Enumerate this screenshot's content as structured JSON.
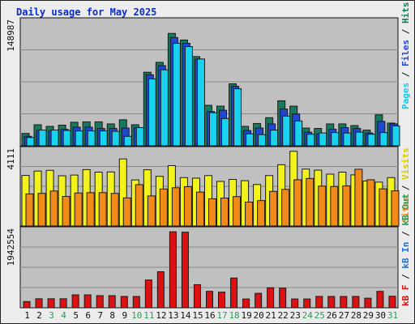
{
  "title": "Daily usage for May 2025",
  "colors": {
    "hits": "#157a5e",
    "files": "#1f47d6",
    "pages": "#18d2f0",
    "visits": "#f2f21c",
    "sites": "#f28a1a",
    "kbytes": "#dd1111",
    "panel_bg": "#c0c0c0",
    "weekend": "#2e9a5a",
    "weekday": "#111111"
  },
  "legend": {
    "top": [
      {
        "label": "Pages",
        "color": "#18c8e6"
      },
      {
        "label": " / ",
        "color": "#111111"
      },
      {
        "label": "Files",
        "color": "#1f47d6"
      },
      {
        "label": " / ",
        "color": "#111111"
      },
      {
        "label": "Hits",
        "color": "#157a5e"
      }
    ],
    "middle": [
      {
        "label": "Sites",
        "color": "#f28a1a"
      },
      {
        "label": " / ",
        "color": "#111111"
      },
      {
        "label": "Visits",
        "color": "#d8c800"
      }
    ],
    "bottom": [
      {
        "label": "kB F",
        "color": "#dd1111"
      },
      {
        "label": " / ",
        "color": "#111111"
      },
      {
        "label": "kB In",
        "color": "#1f70d6"
      },
      {
        "label": " / ",
        "color": "#111111"
      },
      {
        "label": "kB Out",
        "color": "#2e9a5a"
      }
    ]
  },
  "chart_data": {
    "type": "bar",
    "title": "Daily usage for May 2025",
    "categories": [
      "1",
      "2",
      "3",
      "4",
      "5",
      "6",
      "7",
      "8",
      "9",
      "10",
      "11",
      "12",
      "13",
      "14",
      "15",
      "16",
      "17",
      "18",
      "19",
      "20",
      "21",
      "22",
      "23",
      "24",
      "25",
      "26",
      "27",
      "28",
      "29",
      "30",
      "31"
    ],
    "weekend_days": [
      3,
      4,
      10,
      11,
      17,
      18,
      24,
      25,
      31
    ],
    "panels": [
      {
        "id": "hits-files-pages",
        "ymax_label": "148987",
        "ymax": 148987,
        "series": [
          {
            "name": "Hits",
            "color": "#157a5e",
            "values": [
              15000,
              25500,
              23500,
              25000,
              28500,
              29000,
              29000,
              26500,
              31500,
              25500,
              89000,
              101000,
              136000,
              128000,
              108000,
              49000,
              48000,
              75000,
              23500,
              27000,
              34000,
              54500,
              48000,
              21500,
              21000,
              26500,
              26500,
              24500,
              19000,
              37500,
              27500
            ]
          },
          {
            "name": "Files",
            "color": "#1f47d6",
            "values": [
              11500,
              18500,
              18500,
              20000,
              22500,
              22500,
              21000,
              21000,
              21500,
              22000,
              86000,
              97000,
              131000,
              124000,
              105000,
              41500,
              43000,
              72000,
              18500,
              21500,
              26500,
              44500,
              38500,
              16500,
              14500,
              20000,
              22000,
              21000,
              15500,
              29500,
              26500
            ]
          },
          {
            "name": "Pages",
            "color": "#18d2f0",
            "values": [
              10000,
              19000,
              19000,
              18500,
              18000,
              18000,
              18000,
              17500,
              11500,
              22000,
              81000,
              92000,
              124000,
              120000,
              105000,
              40000,
              33000,
              69000,
              14500,
              13500,
              19000,
              36000,
              30000,
              14000,
              15500,
              16000,
              15500,
              16500,
              14000,
              16000,
              24000
            ]
          }
        ]
      },
      {
        "id": "visits-sites",
        "ymax_label": "4111",
        "ymax": 4111,
        "series": [
          {
            "name": "Visits",
            "color": "#f2f21c",
            "values": [
              2790,
              3030,
              3070,
              2770,
              2810,
              3110,
              2970,
              2980,
              3700,
              2540,
              3100,
              2740,
              3330,
              2670,
              2640,
              2780,
              2460,
              2570,
              2500,
              2290,
              2780,
              3380,
              4120,
              3140,
              3080,
              2860,
              2970,
              2820,
              2480,
              2420,
              2670
            ]
          },
          {
            "name": "Sites",
            "color": "#f28a1a",
            "values": [
              1770,
              1800,
              1930,
              1630,
              1820,
              1840,
              1840,
              1800,
              1550,
              2280,
              1660,
              2040,
              2110,
              2170,
              1870,
              1500,
              1540,
              1620,
              1320,
              1400,
              1910,
              2020,
              2550,
              2620,
              2200,
              2180,
              2210,
              3130,
              2550,
              2050,
              1940
            ]
          }
        ]
      },
      {
        "id": "kbytes",
        "ymax_label": "1942554",
        "ymax": 1942554,
        "series": [
          {
            "name": "kB F",
            "color": "#dd1111",
            "values": [
              160000,
              230000,
              230000,
              230000,
              330000,
              330000,
              310000,
              310000,
              290000,
              290000,
              710000,
              920000,
              1940000,
              1930000,
              590000,
              420000,
              400000,
              760000,
              225000,
              370000,
              510000,
              500000,
              225000,
              225000,
              290000,
              290000,
              290000,
              290000,
              245000,
              420000,
              295000
            ]
          }
        ]
      }
    ]
  }
}
